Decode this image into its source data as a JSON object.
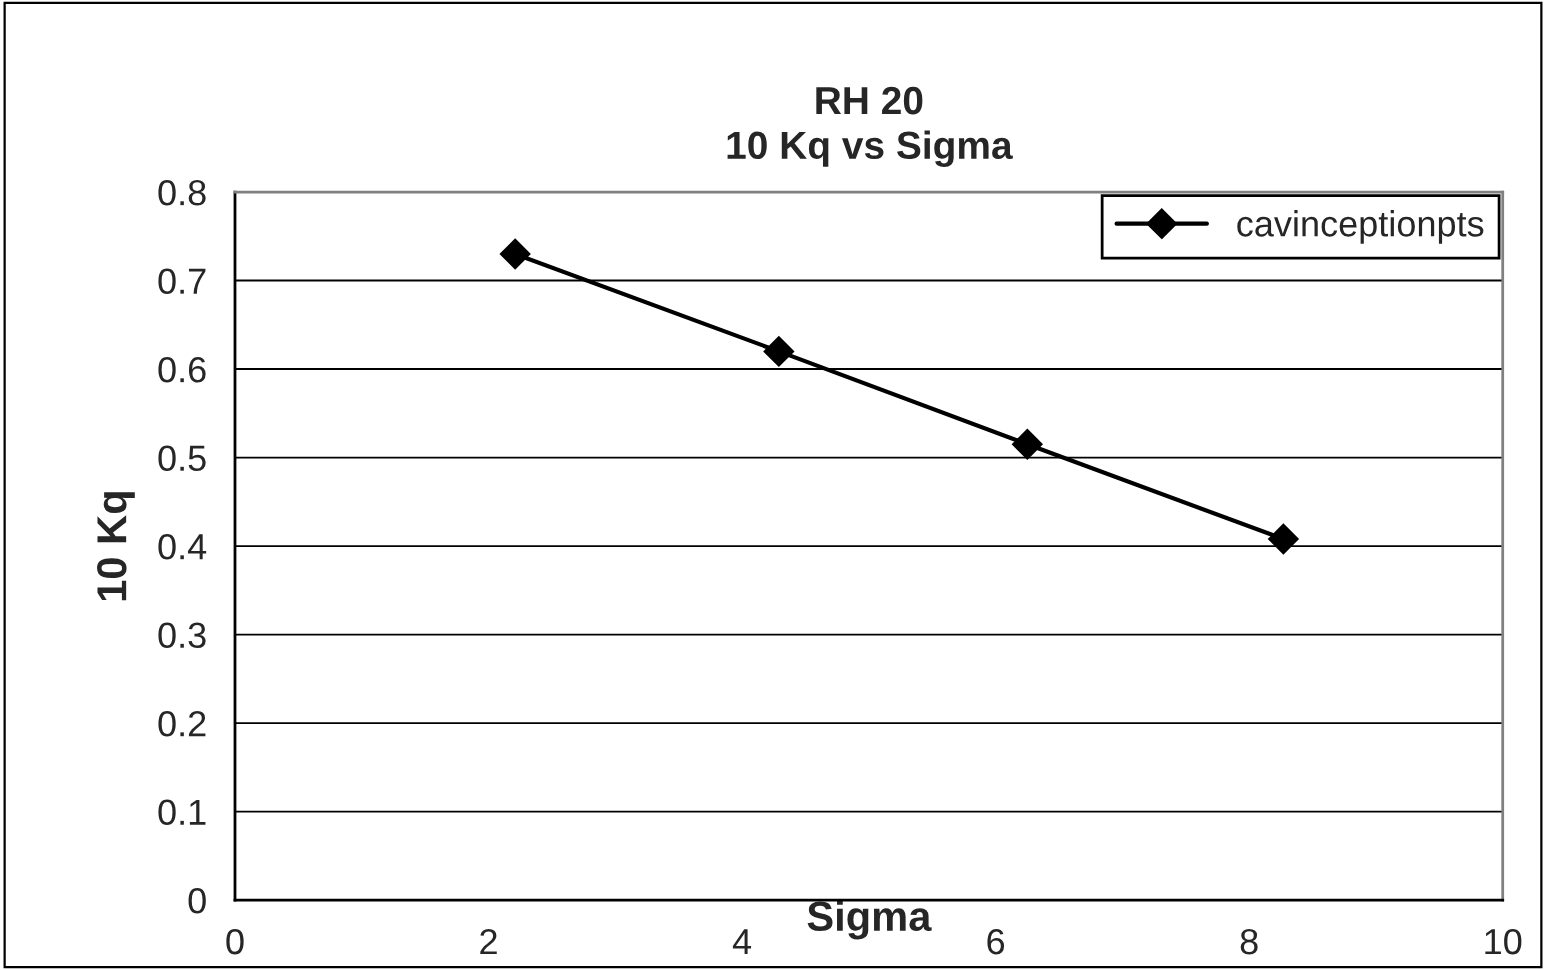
{
  "chart_data": {
    "type": "line",
    "title": "RH 20\n10 Kq vs Sigma",
    "xlabel": "Sigma",
    "ylabel": "10 Kq",
    "series": [
      {
        "name": "cavinceptionpts",
        "color": "#000000",
        "x": [
          2.21,
          4.29,
          6.25,
          8.27
        ],
        "values": [
          0.73,
          0.62,
          0.515,
          0.408
        ]
      }
    ],
    "xlim": [
      0,
      10
    ],
    "xticks": [
      0,
      2,
      4,
      6,
      8,
      10
    ],
    "ylim": [
      0,
      0.8
    ],
    "yticks": [
      0,
      0.1,
      0.2,
      0.3,
      0.4,
      0.5,
      0.6,
      0.7,
      0.8
    ],
    "grid": "y",
    "legend": "top right",
    "marker": "diamond",
    "line_style": "solid"
  }
}
